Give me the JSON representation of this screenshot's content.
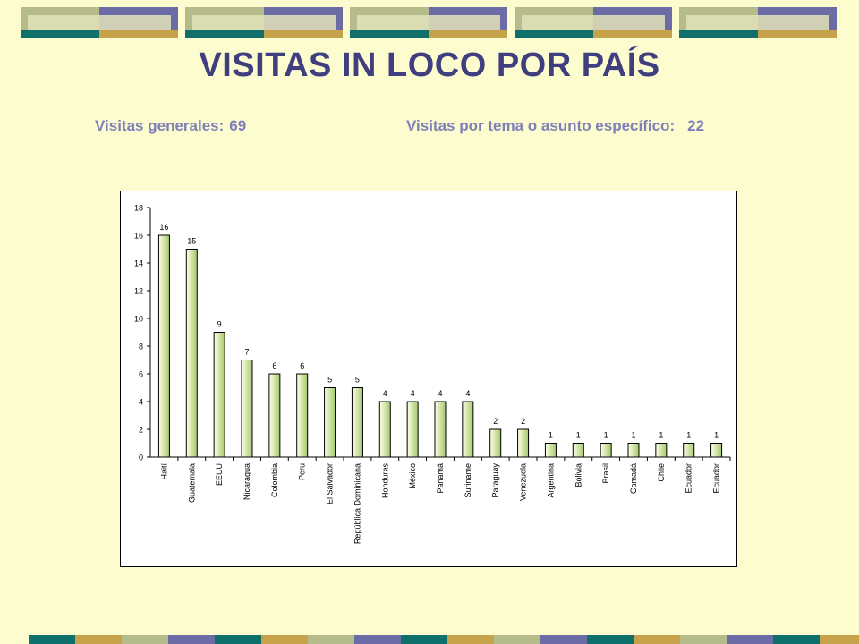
{
  "page": {
    "title": "VISITAS IN LOCO POR PAÍS",
    "general_label": "Visitas generales:",
    "general_value": "69",
    "specific_label": "Visitas por tema o asunto específico:",
    "specific_value": "22"
  },
  "colors": {
    "background": "#fdfccf",
    "title": "#3f3f7f",
    "stats": "#7f80b7",
    "band_olive": "#b5bb8b",
    "band_purple": "#6b6ba5",
    "band_teal": "#0e6f6b",
    "band_gold": "#c6a24a",
    "bar_fill_light": "#ffffe6",
    "bar_fill_dark": "#a4c96b"
  },
  "chart_data": {
    "type": "bar",
    "title": "",
    "xlabel": "",
    "ylabel": "",
    "ylim": [
      0,
      18
    ],
    "yticks": [
      0,
      2,
      4,
      6,
      8,
      10,
      12,
      14,
      16,
      18
    ],
    "grid": false,
    "legend": "none",
    "categories": [
      "Haití",
      "Guatemala",
      "EEUU",
      "Nicaragua",
      "Colombia",
      "Peru",
      "El Salvador",
      "República Dominicana",
      "Honduras",
      "México",
      "Panamá",
      "Suriname",
      "Paraguay",
      "Venezuela",
      "Argentina",
      "Bolivia",
      "Brasil",
      "Camadá",
      "Chile",
      "Ecuador",
      "Ecuador"
    ],
    "values": [
      16,
      15,
      9,
      7,
      6,
      6,
      5,
      5,
      4,
      4,
      4,
      4,
      2,
      2,
      1,
      1,
      1,
      1,
      1,
      1,
      1
    ],
    "data_labels": [
      "16",
      "15",
      "9",
      "7",
      "6",
      "6",
      "5",
      "5",
      "4",
      "4",
      "4",
      "4",
      "2",
      "2",
      "1",
      "1",
      "1",
      "1",
      "1",
      "1",
      "1"
    ]
  }
}
